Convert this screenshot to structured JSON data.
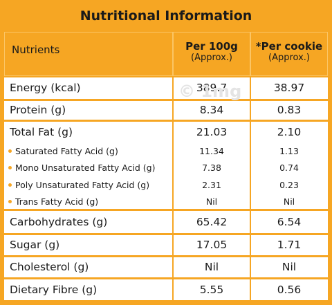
{
  "title": "Nutritional Information",
  "watermark": "© 1mg",
  "header": {
    "nutrients": "Nutrients",
    "per_100g": "Per 100g",
    "per_100g_note": "(Approx.)",
    "per_cookie": "*Per cookie",
    "per_cookie_note": "(Approx.)"
  },
  "rows": [
    {
      "nutrient": "Energy (kcal)",
      "per_100g": "389.7",
      "per_cookie": "38.97"
    },
    {
      "nutrient": "Protein (g)",
      "per_100g": "8.34",
      "per_cookie": "0.83"
    },
    {
      "nutrient": "Total Fat (g)",
      "per_100g": "21.03",
      "per_cookie": "2.10",
      "sub_rows": [
        {
          "nutrient": "Saturated Fatty Acid (g)",
          "per_100g": "11.34",
          "per_cookie": "1.13"
        },
        {
          "nutrient": "Mono Unsaturated Fatty Acid (g)",
          "per_100g": "7.38",
          "per_cookie": "0.74"
        },
        {
          "nutrient": "Poly Unsaturated Fatty Acid (g)",
          "per_100g": "2.31",
          "per_cookie": "0.23"
        },
        {
          "nutrient": "Trans Fatty Acid (g)",
          "per_100g": "Nil",
          "per_cookie": "Nil"
        }
      ]
    },
    {
      "nutrient": "Carbohydrates (g)",
      "per_100g": "65.42",
      "per_cookie": "6.54"
    },
    {
      "nutrient": "Sugar (g)",
      "per_100g": "17.05",
      "per_cookie": "1.71"
    },
    {
      "nutrient": "Cholesterol (g)",
      "per_100g": "Nil",
      "per_cookie": "Nil"
    },
    {
      "nutrient": "Dietary Fibre (g)",
      "per_100g": "5.55",
      "per_cookie": "0.56"
    }
  ]
}
